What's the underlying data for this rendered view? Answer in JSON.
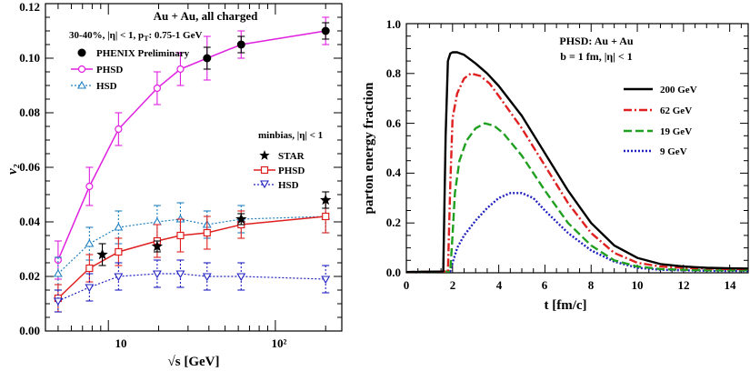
{
  "chart_data": [
    {
      "type": "scatter",
      "xlabel": "√s  [GeV]",
      "ylabel": "v₂",
      "xscale": "log",
      "xlim": [
        4.2,
        250
      ],
      "ylim": [
        0,
        0.12
      ],
      "x_tick_labels": [
        "10",
        "10²"
      ],
      "y_tick_labels": [
        "0.00",
        "0.02",
        "0.04",
        "0.06",
        "0.08",
        "0.10",
        "0.12"
      ],
      "annotations": {
        "system": "Au + Au, all charged",
        "centrality": "30-40%, |η| < 1, p",
        "centrality_sub": "T",
        "centrality_tail": ": 0.75-1 GeV",
        "minbias": "minbias, |η| < 1"
      },
      "series": [
        {
          "name": "PHENIX Preliminary",
          "style": "filled-circle",
          "color": "#000000",
          "x": [
            39,
            62.4,
            200
          ],
          "y": [
            0.1,
            0.105,
            0.11
          ],
          "yerr": [
            0.004,
            0.003,
            0.003
          ]
        },
        {
          "name": "PHSD",
          "style": "solid-open-circle",
          "color": "#e020e0",
          "x": [
            5,
            7.7,
            11.5,
            19.6,
            27,
            39,
            62.4,
            200
          ],
          "y": [
            0.026,
            0.053,
            0.074,
            0.089,
            0.096,
            0.1,
            0.105,
            0.11
          ],
          "yerr": [
            0.007,
            0.007,
            0.006,
            0.006,
            0.006,
            0.008,
            0.005,
            0.005
          ]
        },
        {
          "name": "HSD",
          "style": "dotted-open-triangle-up",
          "color": "#2080c0",
          "x": [
            5,
            7.7,
            11.5,
            19.6,
            27,
            39,
            62.4,
            200
          ],
          "y": [
            0.021,
            0.032,
            0.038,
            0.04,
            0.041,
            0.039,
            0.041,
            0.042
          ],
          "yerr": [
            0.006,
            0.006,
            0.006,
            0.006,
            0.006,
            0.005,
            0.005,
            0.006
          ]
        },
        {
          "name": "STAR",
          "style": "filled-star",
          "color": "#000000",
          "x": [
            9.2,
            19.6,
            62.4,
            200
          ],
          "y": [
            0.028,
            0.031,
            0.041,
            0.048
          ],
          "yerr": [
            0.004,
            0.002,
            0.002,
            0.003
          ]
        },
        {
          "name": "PHSD",
          "style": "solid-open-square",
          "color": "#e02020",
          "x": [
            5,
            7.7,
            11.5,
            19.6,
            27,
            39,
            62.4,
            200
          ],
          "y": [
            0.012,
            0.023,
            0.029,
            0.033,
            0.035,
            0.036,
            0.039,
            0.042
          ],
          "yerr": [
            0.005,
            0.005,
            0.005,
            0.006,
            0.006,
            0.006,
            0.005,
            0.006
          ]
        },
        {
          "name": "HSD",
          "style": "dotted-open-triangle-down",
          "color": "#2020c0",
          "x": [
            5,
            7.7,
            11.5,
            19.6,
            27,
            39,
            62.4,
            200
          ],
          "y": [
            0.011,
            0.016,
            0.02,
            0.021,
            0.021,
            0.02,
            0.02,
            0.019
          ],
          "yerr": [
            0.004,
            0.005,
            0.005,
            0.005,
            0.005,
            0.005,
            0.005,
            0.005
          ]
        }
      ]
    },
    {
      "type": "line",
      "xlabel": "t [fm/c]",
      "ylabel": "parton energy fraction",
      "xlim": [
        0,
        14.8
      ],
      "ylim": [
        0,
        1.0
      ],
      "x_tick_labels": [
        "0",
        "2",
        "4",
        "6",
        "8",
        "10",
        "12",
        "14"
      ],
      "y_tick_labels": [
        "0.0",
        "0.2",
        "0.4",
        "0.6",
        "0.8",
        "1.0"
      ],
      "annotations": {
        "title_line1": "PHSD: Au + Au",
        "title_line2": "b = 1 fm, |η| < 1"
      },
      "legend_position": "right",
      "series": [
        {
          "name": "200 GeV",
          "style": "solid",
          "color": "#000000",
          "x": [
            0,
            1.6,
            1.7,
            1.8,
            1.9,
            2.0,
            2.2,
            2.5,
            3,
            3.5,
            4,
            5,
            6,
            7,
            8,
            9,
            10,
            11,
            12,
            13,
            14,
            14.8
          ],
          "y": [
            0.003,
            0.005,
            0.55,
            0.85,
            0.88,
            0.885,
            0.885,
            0.875,
            0.84,
            0.8,
            0.75,
            0.63,
            0.48,
            0.33,
            0.2,
            0.11,
            0.06,
            0.035,
            0.025,
            0.02,
            0.018,
            0.017
          ]
        },
        {
          "name": "62 GeV",
          "style": "dash-dot",
          "color": "#e02020",
          "x": [
            0,
            1.8,
            1.9,
            2.0,
            2.2,
            2.5,
            2.8,
            3.2,
            3.6,
            4,
            5,
            6,
            7,
            8,
            9,
            10,
            11,
            12,
            13,
            14,
            14.8
          ],
          "y": [
            0.003,
            0.005,
            0.35,
            0.62,
            0.72,
            0.78,
            0.8,
            0.79,
            0.76,
            0.71,
            0.58,
            0.43,
            0.28,
            0.16,
            0.08,
            0.04,
            0.025,
            0.02,
            0.017,
            0.015,
            0.015
          ]
        },
        {
          "name": "19 GeV",
          "style": "dashed",
          "color": "#20a020",
          "x": [
            0,
            1.9,
            2.0,
            2.1,
            2.3,
            2.6,
            3.0,
            3.4,
            3.8,
            4.2,
            5,
            6,
            7,
            8,
            9,
            10,
            11,
            12,
            13,
            14,
            14.8
          ],
          "y": [
            0.003,
            0.005,
            0.15,
            0.32,
            0.45,
            0.53,
            0.58,
            0.6,
            0.59,
            0.56,
            0.47,
            0.33,
            0.2,
            0.11,
            0.05,
            0.025,
            0.015,
            0.012,
            0.01,
            0.01,
            0.01
          ]
        },
        {
          "name": "9 GeV",
          "style": "dotted",
          "color": "#2020c0",
          "x": [
            0,
            1.9,
            2.0,
            2.2,
            2.5,
            3.0,
            3.5,
            4.0,
            4.5,
            5.0,
            5.5,
            6,
            7,
            8,
            9,
            10,
            11,
            12,
            13,
            14,
            14.8
          ],
          "y": [
            0.003,
            0.005,
            0.04,
            0.1,
            0.15,
            0.21,
            0.26,
            0.3,
            0.32,
            0.32,
            0.3,
            0.25,
            0.16,
            0.09,
            0.045,
            0.02,
            0.012,
            0.01,
            0.008,
            0.007,
            0.007
          ]
        }
      ]
    }
  ]
}
